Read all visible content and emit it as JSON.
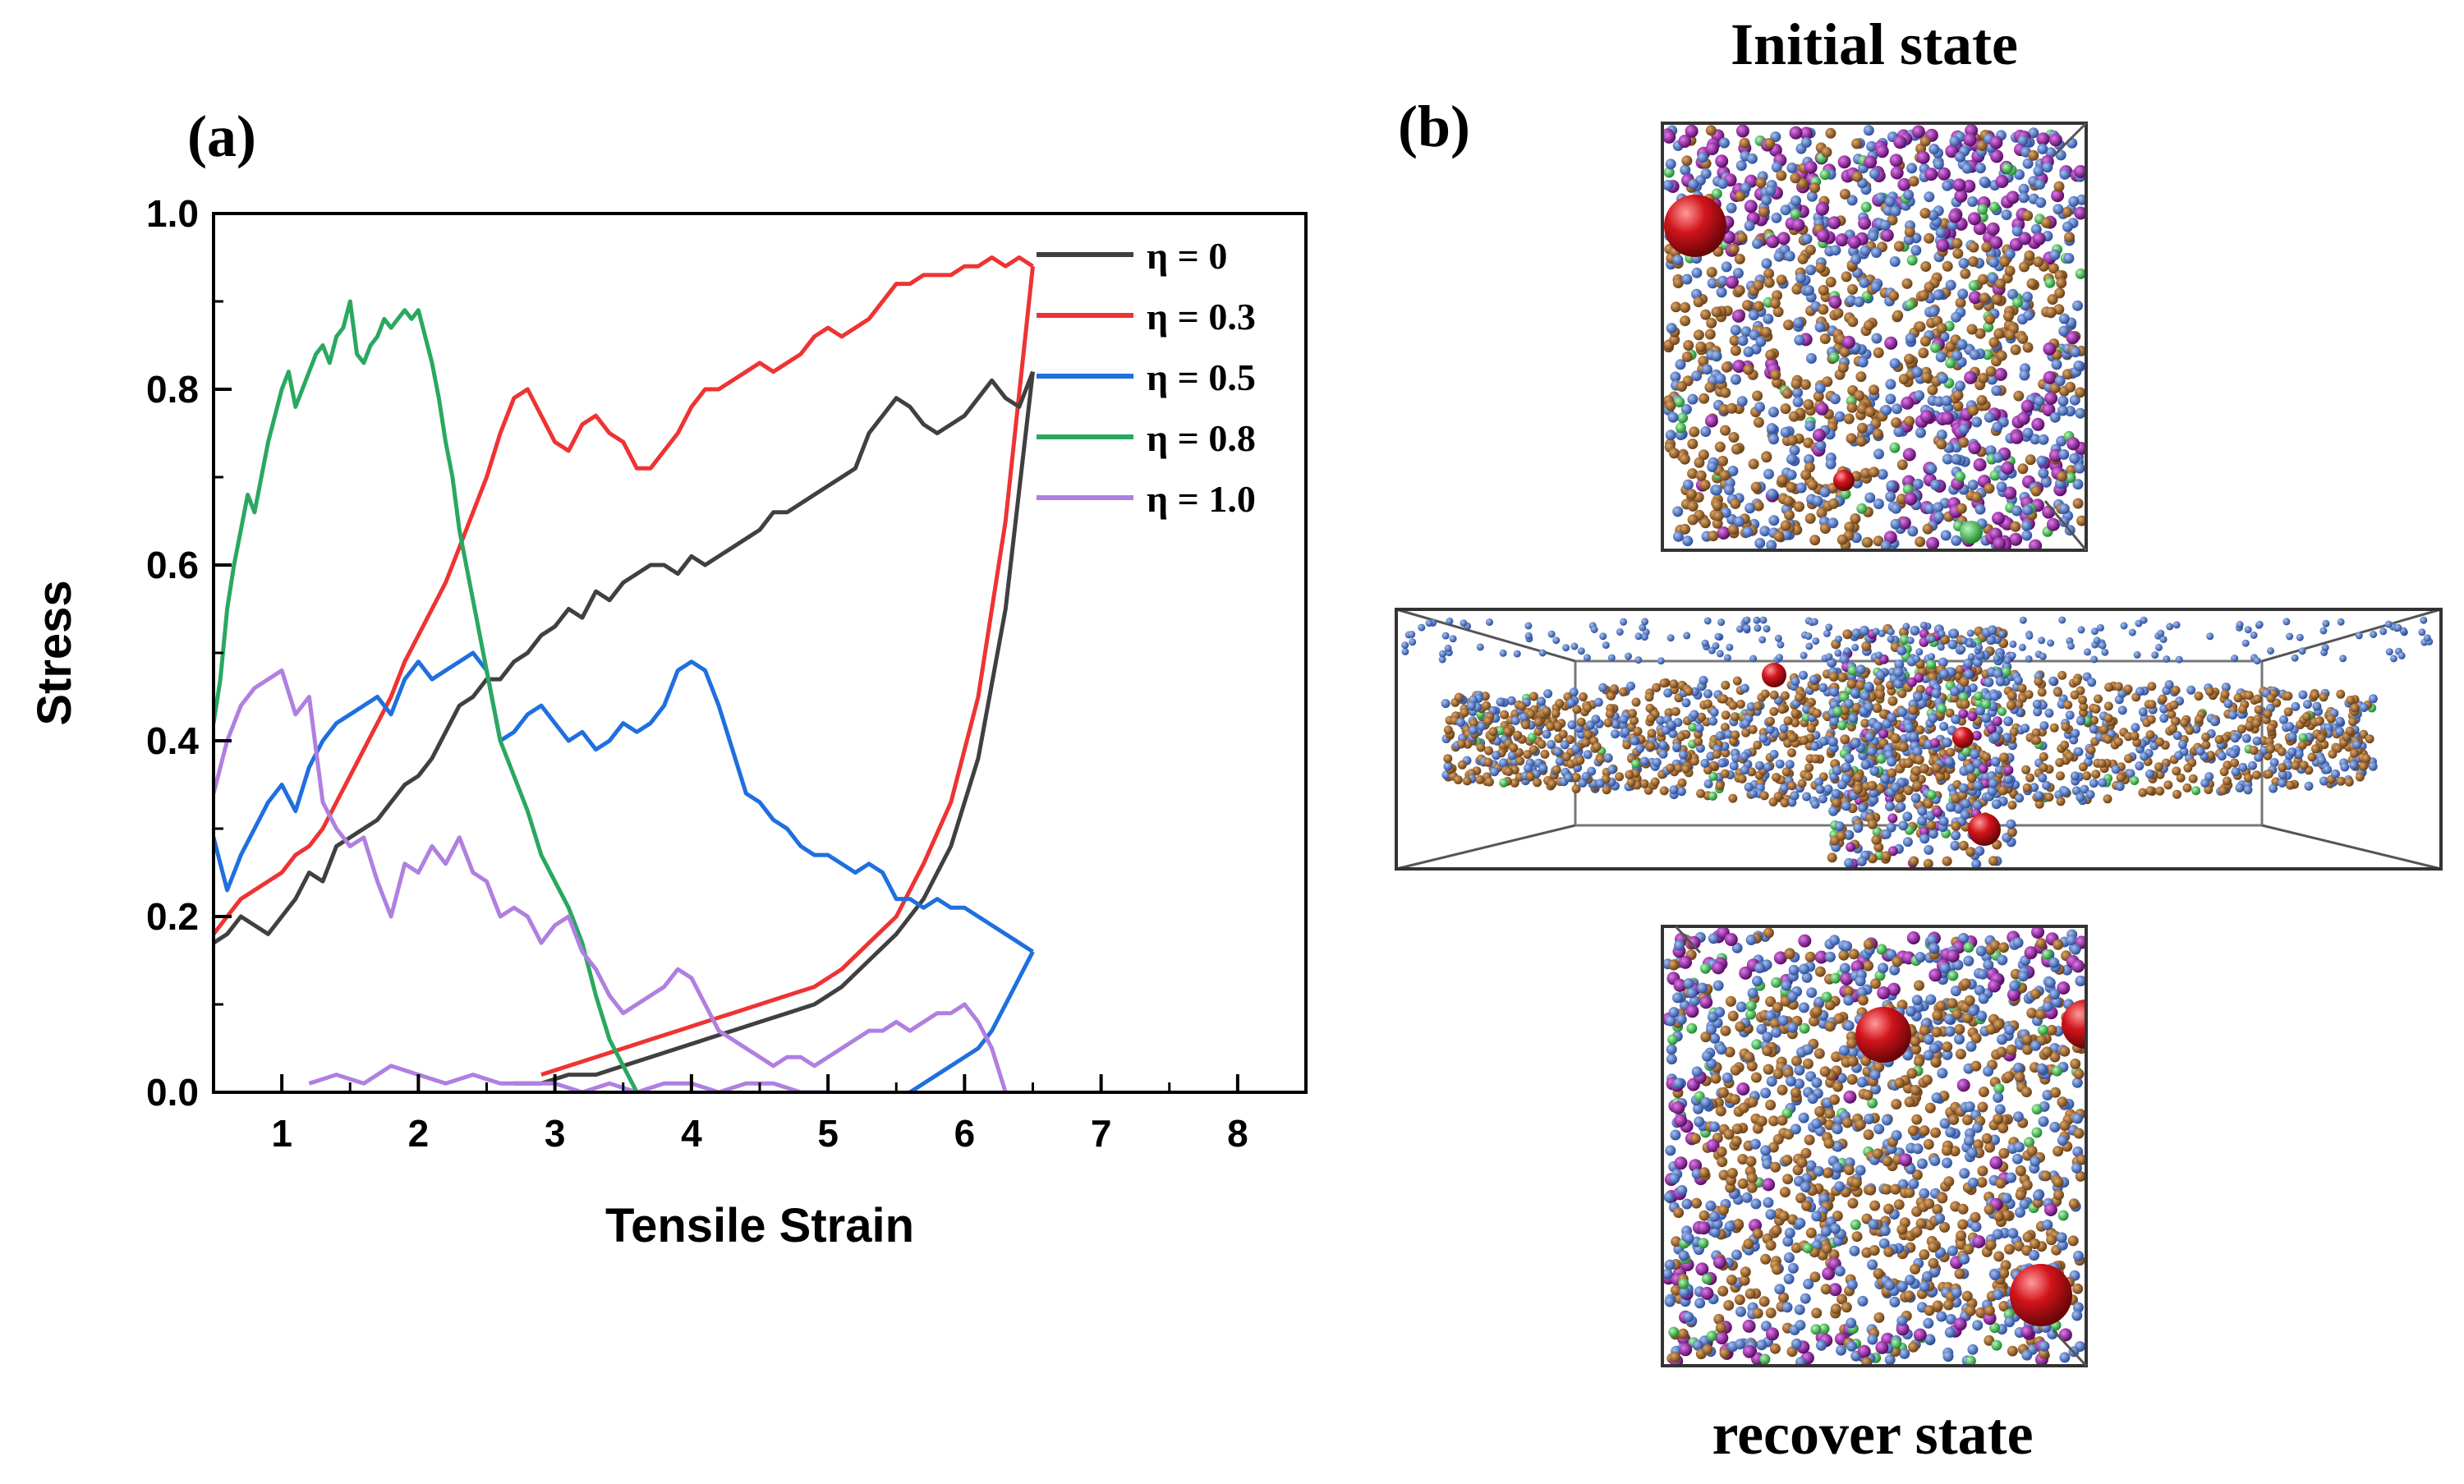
{
  "panel_a": {
    "label": "(a)",
    "chart_data": {
      "type": "line",
      "title": "",
      "xlabel": "Tensile Strain",
      "ylabel": "Stress",
      "xlim": [
        0.5,
        8.5
      ],
      "ylim": [
        0,
        1.0
      ],
      "xticks": [
        "1",
        "2",
        "3",
        "4",
        "5",
        "6",
        "7",
        "8"
      ],
      "yticks": [
        "0.0",
        "0.2",
        "0.4",
        "0.6",
        "0.8",
        "1.0"
      ],
      "grid": false,
      "legend_position": "top-right",
      "series": [
        {
          "name": "η = 0",
          "color": "#404040",
          "x": [
            0.5,
            0.6,
            0.7,
            0.8,
            0.9,
            1.0,
            1.1,
            1.2,
            1.3,
            1.4,
            1.5,
            1.6,
            1.7,
            1.8,
            1.9,
            2.0,
            2.1,
            2.2,
            2.3,
            2.4,
            2.5,
            2.6,
            2.7,
            2.8,
            2.9,
            3.0,
            3.1,
            3.2,
            3.3,
            3.4,
            3.5,
            3.6,
            3.7,
            3.8,
            3.9,
            4.0,
            4.1,
            4.2,
            4.3,
            4.4,
            4.5,
            4.6,
            4.7,
            4.8,
            4.9,
            5.0,
            5.1,
            5.2,
            5.3,
            5.4,
            5.5,
            5.6,
            5.7,
            5.8,
            5.9,
            6.0,
            6.1,
            6.2,
            6.3,
            6.4,
            6.5
          ],
          "y": [
            0.17,
            0.18,
            0.2,
            0.19,
            0.18,
            0.2,
            0.22,
            0.25,
            0.24,
            0.28,
            0.29,
            0.3,
            0.31,
            0.33,
            0.35,
            0.36,
            0.38,
            0.41,
            0.44,
            0.45,
            0.47,
            0.47,
            0.49,
            0.5,
            0.52,
            0.53,
            0.55,
            0.54,
            0.57,
            0.56,
            0.58,
            0.59,
            0.6,
            0.6,
            0.59,
            0.61,
            0.6,
            0.61,
            0.62,
            0.63,
            0.64,
            0.66,
            0.66,
            0.67,
            0.68,
            0.69,
            0.7,
            0.71,
            0.75,
            0.77,
            0.79,
            0.78,
            0.76,
            0.75,
            0.76,
            0.77,
            0.79,
            0.81,
            0.79,
            0.78,
            0.82
          ]
        },
        {
          "name": "η = 0.3",
          "color": "#ee3333",
          "x": [
            0.5,
            0.6,
            0.7,
            0.8,
            0.9,
            1.0,
            1.1,
            1.2,
            1.3,
            1.4,
            1.5,
            1.6,
            1.7,
            1.8,
            1.9,
            2.0,
            2.1,
            2.2,
            2.3,
            2.4,
            2.5,
            2.6,
            2.7,
            2.8,
            2.9,
            3.0,
            3.1,
            3.2,
            3.3,
            3.4,
            3.5,
            3.6,
            3.7,
            3.8,
            3.9,
            4.0,
            4.1,
            4.2,
            4.3,
            4.4,
            4.5,
            4.6,
            4.7,
            4.8,
            4.9,
            5.0,
            5.1,
            5.2,
            5.3,
            5.4,
            5.5,
            5.6,
            5.7,
            5.8,
            5.9,
            6.0,
            6.1,
            6.2,
            6.3,
            6.4,
            6.5
          ],
          "y": [
            0.18,
            0.2,
            0.22,
            0.23,
            0.24,
            0.25,
            0.27,
            0.28,
            0.3,
            0.33,
            0.36,
            0.39,
            0.42,
            0.45,
            0.49,
            0.52,
            0.55,
            0.58,
            0.62,
            0.66,
            0.7,
            0.75,
            0.79,
            0.8,
            0.77,
            0.74,
            0.73,
            0.76,
            0.77,
            0.75,
            0.74,
            0.71,
            0.71,
            0.73,
            0.75,
            0.78,
            0.8,
            0.8,
            0.81,
            0.82,
            0.83,
            0.82,
            0.83,
            0.84,
            0.86,
            0.87,
            0.86,
            0.87,
            0.88,
            0.9,
            0.92,
            0.92,
            0.93,
            0.93,
            0.93,
            0.94,
            0.94,
            0.95,
            0.94,
            0.95,
            0.94
          ]
        },
        {
          "name": "η = 0.5",
          "color": "#1f6fde",
          "x": [
            0.5,
            0.6,
            0.7,
            0.8,
            0.9,
            1.0,
            1.1,
            1.2,
            1.3,
            1.4,
            1.5,
            1.6,
            1.7,
            1.8,
            1.9,
            2.0,
            2.1,
            2.2,
            2.3,
            2.4,
            2.5,
            2.6,
            2.7,
            2.8,
            2.9,
            3.0,
            3.1,
            3.2,
            3.3,
            3.4,
            3.5,
            3.6,
            3.7,
            3.8,
            3.9,
            4.0,
            4.1,
            4.2,
            4.3,
            4.4,
            4.5,
            4.6,
            4.7,
            4.8,
            4.9,
            5.0,
            5.1,
            5.2,
            5.3,
            5.4,
            5.5,
            5.6,
            5.7,
            5.8,
            5.9,
            6.0,
            6.1,
            6.2,
            6.3,
            6.4,
            6.5
          ],
          "y": [
            0.29,
            0.23,
            0.27,
            0.3,
            0.33,
            0.35,
            0.32,
            0.37,
            0.4,
            0.42,
            0.43,
            0.44,
            0.45,
            0.43,
            0.47,
            0.49,
            0.47,
            0.48,
            0.49,
            0.5,
            0.48,
            0.4,
            0.41,
            0.43,
            0.44,
            0.42,
            0.4,
            0.41,
            0.39,
            0.4,
            0.42,
            0.41,
            0.42,
            0.44,
            0.48,
            0.49,
            0.48,
            0.44,
            0.39,
            0.34,
            0.33,
            0.31,
            0.3,
            0.28,
            0.27,
            0.27,
            0.26,
            0.25,
            0.26,
            0.25,
            0.22,
            0.22,
            0.21,
            0.22,
            0.21,
            0.21,
            0.2,
            0.19,
            0.18,
            0.17,
            0.16
          ]
        },
        {
          "name": "η = 0.8",
          "color": "#2aa860",
          "x": [
            0.5,
            0.55,
            0.6,
            0.65,
            0.7,
            0.75,
            0.8,
            0.85,
            0.9,
            0.95,
            1.0,
            1.05,
            1.1,
            1.15,
            1.2,
            1.25,
            1.3,
            1.35,
            1.4,
            1.45,
            1.5,
            1.55,
            1.6,
            1.65,
            1.7,
            1.75,
            1.8,
            1.85,
            1.9,
            1.95,
            2.0,
            2.05,
            2.1,
            2.15,
            2.2,
            2.25,
            2.3,
            2.35,
            2.4,
            2.45,
            2.5,
            2.55,
            2.6,
            2.7,
            2.8,
            2.9,
            3.0,
            3.1,
            3.2,
            3.3,
            3.4,
            3.5,
            3.6
          ],
          "y": [
            0.42,
            0.47,
            0.55,
            0.6,
            0.64,
            0.68,
            0.66,
            0.7,
            0.74,
            0.77,
            0.8,
            0.82,
            0.78,
            0.8,
            0.82,
            0.84,
            0.85,
            0.83,
            0.86,
            0.87,
            0.9,
            0.84,
            0.83,
            0.85,
            0.86,
            0.88,
            0.87,
            0.88,
            0.89,
            0.88,
            0.89,
            0.86,
            0.83,
            0.79,
            0.74,
            0.7,
            0.64,
            0.6,
            0.56,
            0.52,
            0.48,
            0.44,
            0.4,
            0.36,
            0.32,
            0.27,
            0.24,
            0.21,
            0.17,
            0.11,
            0.06,
            0.03,
            0.0
          ]
        },
        {
          "name": "η = 1.0",
          "color": "#b07fe0",
          "x": [
            0.5,
            0.6,
            0.7,
            0.8,
            0.9,
            1.0,
            1.1,
            1.2,
            1.3,
            1.4,
            1.5,
            1.6,
            1.7,
            1.8,
            1.9,
            2.0,
            2.1,
            2.2,
            2.3,
            2.4,
            2.5,
            2.6,
            2.7,
            2.8,
            2.9,
            3.0,
            3.1,
            3.2,
            3.3,
            3.4,
            3.5,
            3.6,
            3.7,
            3.8,
            3.9,
            4.0,
            4.1,
            4.2,
            4.3,
            4.4,
            4.5,
            4.6,
            4.7,
            4.8,
            4.9,
            5.0,
            5.1,
            5.2,
            5.3,
            5.4,
            5.5,
            5.6,
            5.7,
            5.8,
            5.9,
            6.0,
            6.1,
            6.2,
            6.3
          ],
          "y": [
            0.34,
            0.4,
            0.44,
            0.46,
            0.47,
            0.48,
            0.43,
            0.45,
            0.33,
            0.3,
            0.28,
            0.29,
            0.24,
            0.2,
            0.26,
            0.25,
            0.28,
            0.26,
            0.29,
            0.25,
            0.24,
            0.2,
            0.21,
            0.2,
            0.17,
            0.19,
            0.2,
            0.16,
            0.14,
            0.11,
            0.09,
            0.1,
            0.11,
            0.12,
            0.14,
            0.13,
            0.1,
            0.07,
            0.06,
            0.05,
            0.04,
            0.03,
            0.04,
            0.04,
            0.03,
            0.04,
            0.05,
            0.06,
            0.07,
            0.07,
            0.08,
            0.07,
            0.08,
            0.09,
            0.09,
            0.1,
            0.08,
            0.05,
            0.0
          ]
        }
      ],
      "return_curves": [
        {
          "series": "η = 0",
          "x": [
            6.5,
            6.3,
            6.1,
            5.9,
            5.7,
            5.5,
            5.3,
            5.1,
            4.9,
            4.7,
            4.5,
            4.3,
            4.1,
            3.9,
            3.7,
            3.5,
            3.3,
            3.1,
            2.9,
            2.7
          ],
          "y": [
            0.82,
            0.55,
            0.38,
            0.28,
            0.22,
            0.18,
            0.15,
            0.12,
            0.1,
            0.09,
            0.08,
            0.07,
            0.06,
            0.05,
            0.04,
            0.03,
            0.02,
            0.02,
            0.01,
            0.01
          ]
        },
        {
          "series": "η = 0.3",
          "x": [
            6.5,
            6.3,
            6.1,
            5.9,
            5.7,
            5.5,
            5.3,
            5.1,
            4.9,
            4.7,
            4.5,
            4.3,
            4.1,
            3.9,
            3.7,
            3.5,
            3.3,
            3.1,
            2.9
          ],
          "y": [
            0.94,
            0.65,
            0.45,
            0.33,
            0.26,
            0.2,
            0.17,
            0.14,
            0.12,
            0.11,
            0.1,
            0.09,
            0.08,
            0.07,
            0.06,
            0.05,
            0.04,
            0.03,
            0.02
          ]
        },
        {
          "series": "η = 0.5",
          "x": [
            6.5,
            6.4,
            6.3,
            6.2,
            6.1,
            6.0,
            5.9,
            5.8,
            5.7,
            5.6
          ],
          "y": [
            0.16,
            0.13,
            0.1,
            0.07,
            0.05,
            0.04,
            0.03,
            0.02,
            0.01,
            0.0
          ]
        },
        {
          "series": "η = 1.0",
          "x": [
            1.2,
            1.4,
            1.6,
            1.8,
            2.0,
            2.2,
            2.4,
            2.6,
            2.8,
            3.0,
            3.2,
            3.4,
            3.6,
            3.8,
            4.0,
            4.2,
            4.4,
            4.6,
            4.8,
            5.0
          ],
          "y": [
            0.01,
            0.02,
            0.01,
            0.03,
            0.02,
            0.01,
            0.02,
            0.01,
            0.01,
            0.01,
            0.0,
            0.01,
            0.0,
            0.01,
            0.01,
            0.0,
            0.01,
            0.01,
            0.0,
            0.0
          ]
        }
      ]
    }
  },
  "panel_b": {
    "label": "(b)",
    "title_top": "Initial state",
    "title_bottom": "recover state",
    "particle_colors": {
      "brown": "#a0652a",
      "blue": "#4a74c9",
      "purple": "#9b1fa6",
      "green": "#3ecf4f",
      "red": "#d1141b"
    }
  }
}
